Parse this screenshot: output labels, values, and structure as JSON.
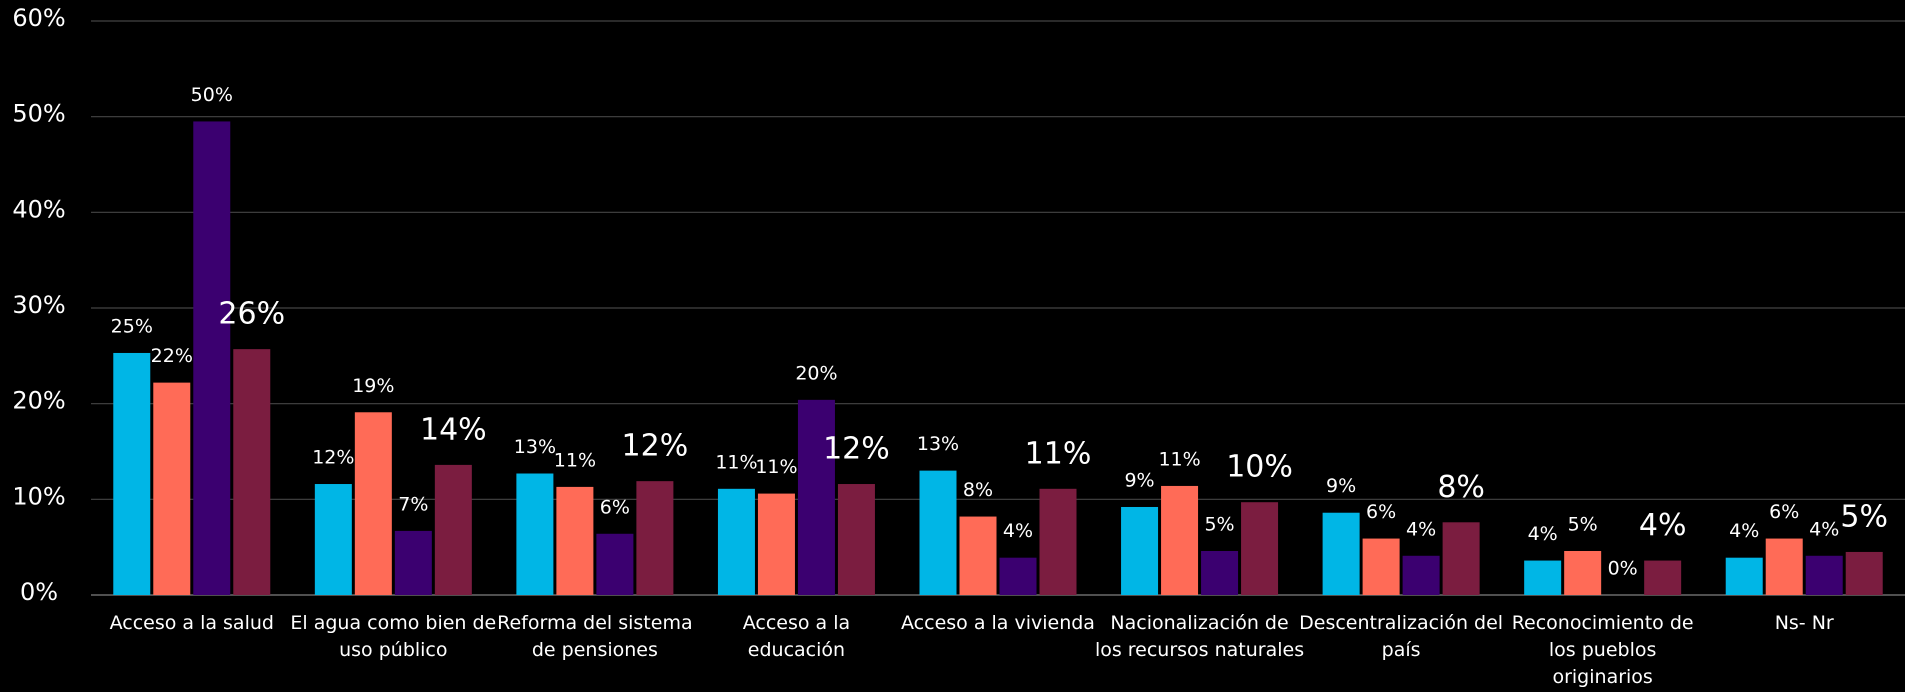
{
  "chart_data": {
    "type": "bar",
    "categories": [
      "Acceso a la salud",
      "El agua como bien de uso público",
      "Reforma del sistema de pensiones",
      "Acceso a la educación",
      "Acceso a la vivienda",
      "Nacionalización de los recursos naturales",
      "Descentralización del país",
      "Reconocimiento de los pueblos originarios",
      "Ns- Nr"
    ],
    "series": [
      {
        "color": "#00b6e6",
        "values": [
          25.3,
          11.6,
          12.7,
          11.1,
          13.0,
          9.2,
          8.6,
          3.6,
          3.9
        ],
        "value_labels": [
          "25%",
          "12%",
          "13%",
          "11%",
          "13%",
          "9%",
          "9%",
          "4%",
          "4%"
        ]
      },
      {
        "color": "#ff6b57",
        "values": [
          22.2,
          19.1,
          11.3,
          10.6,
          8.2,
          11.4,
          5.9,
          4.6,
          5.9
        ],
        "value_labels": [
          "22%",
          "19%",
          "11%",
          "11%",
          "8%",
          "11%",
          "6%",
          "5%",
          "6%"
        ]
      },
      {
        "color": "#3b0070",
        "values": [
          49.5,
          6.7,
          6.4,
          20.4,
          3.9,
          4.6,
          4.1,
          0,
          4.1
        ],
        "value_labels": [
          "50%",
          "7%",
          "6%",
          "20%",
          "4%",
          "5%",
          "4%",
          "0%",
          "4%"
        ]
      },
      {
        "color": "#7b1d40",
        "values": [
          25.7,
          13.6,
          11.9,
          11.6,
          11.1,
          9.7,
          7.6,
          3.6,
          4.5
        ],
        "value_labels": [
          "26%",
          "14%",
          "12%",
          "12%",
          "11%",
          "10%",
          "8%",
          "4%",
          "5%"
        ]
      }
    ],
    "ylim": [
      0,
      60
    ],
    "yticks": [
      {
        "value": 0,
        "label": "0%"
      },
      {
        "value": 10,
        "label": "10%"
      },
      {
        "value": 20,
        "label": "20%"
      },
      {
        "value": 30,
        "label": "30%"
      },
      {
        "value": 40,
        "label": "40%"
      },
      {
        "value": 50,
        "label": "50%"
      },
      {
        "value": 60,
        "label": "60%"
      }
    ],
    "grid": true
  }
}
